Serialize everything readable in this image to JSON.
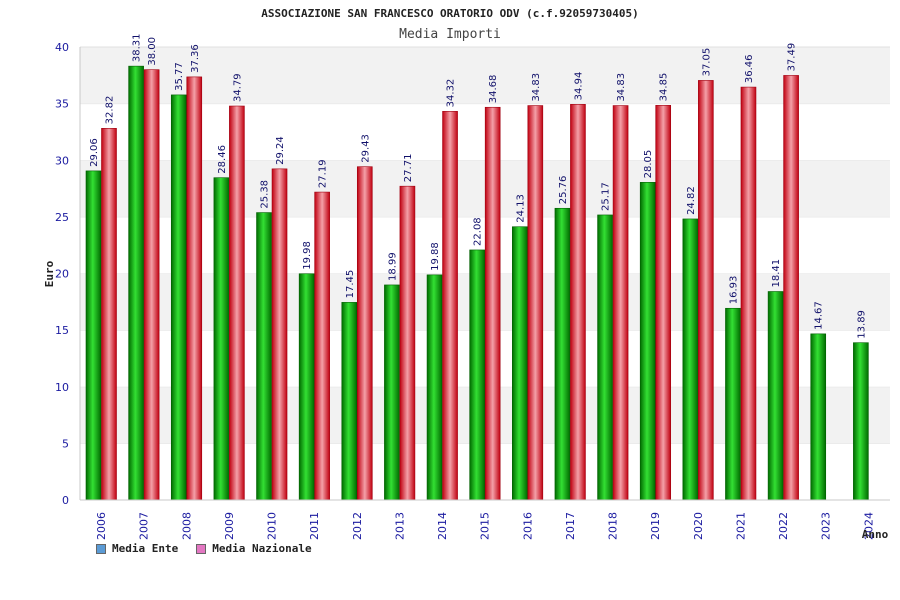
{
  "chart_data": {
    "type": "bar",
    "title": "ASSOCIAZIONE SAN FRANCESCO ORATORIO ODV (c.f.92059730405)",
    "subtitle": "Media Importi",
    "xlabel": "Anno",
    "ylabel": "Euro",
    "ylim": [
      0,
      40
    ],
    "yticks": [
      "0",
      "5",
      "10",
      "15",
      "20",
      "25",
      "30",
      "35",
      "40"
    ],
    "categories": [
      "2006",
      "2007",
      "2008",
      "2009",
      "2010",
      "2011",
      "2012",
      "2013",
      "2014",
      "2015",
      "2016",
      "2017",
      "2018",
      "2019",
      "2020",
      "2021",
      "2022",
      "2023",
      "2024"
    ],
    "series": [
      {
        "name": "Media Ente",
        "color": "#0db00d",
        "legend_color": "#5b9bd5",
        "values": [
          29.06,
          38.31,
          35.77,
          28.46,
          25.38,
          19.98,
          17.45,
          18.99,
          19.88,
          22.08,
          24.13,
          25.76,
          25.17,
          28.05,
          24.82,
          16.93,
          18.41,
          14.67,
          13.89
        ],
        "labels": [
          "29.06",
          "38.31",
          "35.77",
          "28.46",
          "25.38",
          "19.98",
          "17.45",
          "18.99",
          "19.88",
          "22.08",
          "24.13",
          "25.76",
          "25.17",
          "28.05",
          "24.82",
          "16.93",
          "18.41",
          "14.67",
          "13.89"
        ]
      },
      {
        "name": "Media Nazionale",
        "color": "#e01b24",
        "legend_color": "#e377c2",
        "values": [
          32.82,
          38.0,
          37.36,
          34.79,
          29.24,
          27.19,
          29.43,
          27.71,
          34.32,
          34.68,
          34.83,
          34.94,
          34.83,
          34.85,
          37.05,
          36.46,
          37.49,
          null,
          null
        ],
        "labels": [
          "32.82",
          "38.00",
          "37.36",
          "34.79",
          "29.24",
          "27.19",
          "29.43",
          "27.71",
          "34.32",
          "34.68",
          "34.83",
          "34.94",
          "34.83",
          "34.85",
          "37.05",
          "36.46",
          "37.49",
          null,
          null
        ]
      }
    ],
    "grid": true,
    "legend_position": "bottom-left"
  }
}
